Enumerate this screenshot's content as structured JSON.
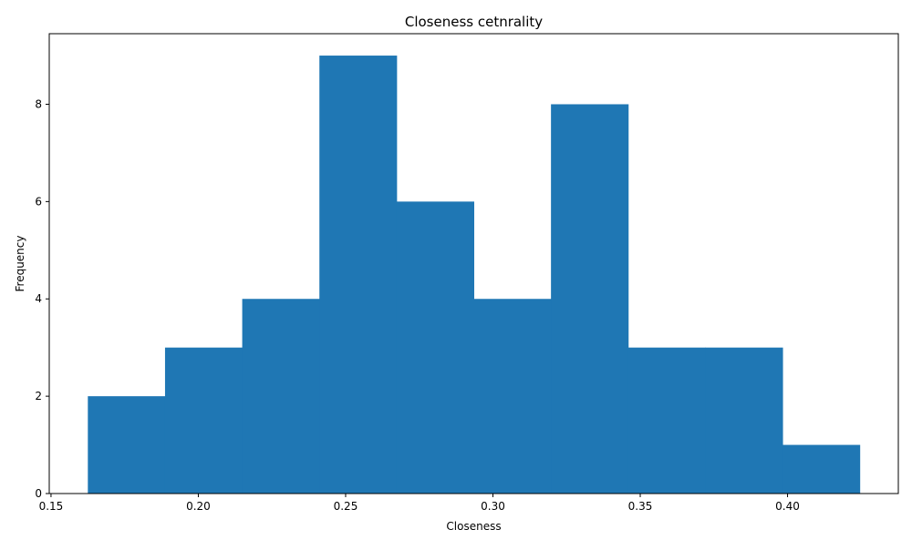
{
  "chart_data": {
    "type": "bar",
    "title": "Closeness cetnrality",
    "xlabel": "Closeness",
    "ylabel": "Frequency",
    "bin_edges": [
      0.1625,
      0.1887,
      0.2149,
      0.2411,
      0.2673,
      0.2935,
      0.3197,
      0.3459,
      0.3721,
      0.3983,
      0.4245
    ],
    "values": [
      2,
      3,
      4,
      9,
      6,
      4,
      8,
      3,
      3,
      1
    ],
    "xlim": [
      0.1494,
      0.4376
    ],
    "ylim": [
      0,
      9.45
    ],
    "xticks": [
      0.15,
      0.2,
      0.25,
      0.3,
      0.35,
      0.4
    ],
    "xtick_labels": [
      "0.15",
      "0.20",
      "0.25",
      "0.30",
      "0.35",
      "0.40"
    ],
    "yticks": [
      0,
      2,
      4,
      6,
      8
    ],
    "ytick_labels": [
      "0",
      "2",
      "4",
      "6",
      "8"
    ],
    "bar_color": "#1f77b4",
    "grid": false,
    "legend": "none"
  }
}
